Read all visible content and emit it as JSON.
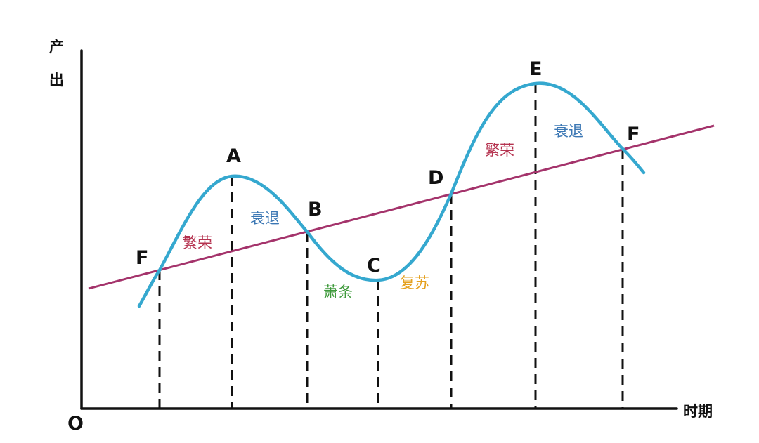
{
  "axes": {
    "y_label_top": "产",
    "y_label_bottom": "出",
    "x_label": "时期",
    "origin": "O"
  },
  "points": [
    "F",
    "A",
    "B",
    "C",
    "D",
    "E",
    "F"
  ],
  "phases": [
    {
      "text": "繁荣",
      "color": "#b5324f"
    },
    {
      "text": "衰退",
      "color": "#3b77b4"
    },
    {
      "text": "萧条",
      "color": "#3f9a3c"
    },
    {
      "text": "复苏",
      "color": "#e5a11f"
    },
    {
      "text": "繁荣",
      "color": "#b5324f"
    },
    {
      "text": "衰退",
      "color": "#3b77b4"
    }
  ],
  "colors": {
    "wave": "#35a8cf",
    "trend": "#a4336b",
    "axis": "#111111"
  }
}
